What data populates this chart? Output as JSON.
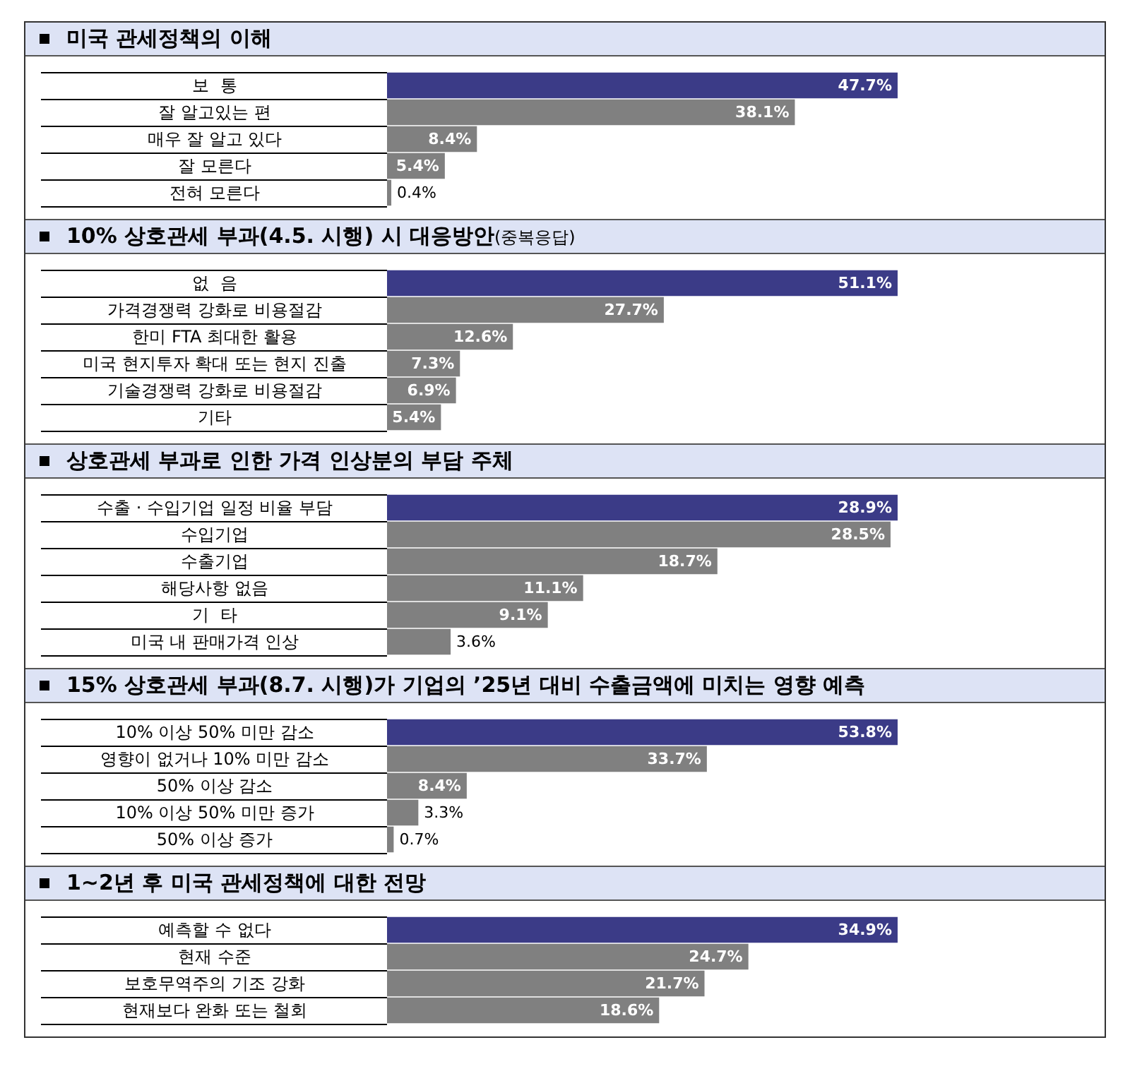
{
  "chart_data": [
    {
      "type": "bar",
      "orientation": "horizontal",
      "data_labels": true,
      "title": "미국 관세정책의 이해",
      "categories": [
        "보  통",
        "잘 알고있는 편",
        "매우 잘 알고 있다",
        "잘 모른다",
        "전혀 모른다"
      ],
      "values": [
        47.7,
        38.1,
        8.4,
        5.4,
        0.4
      ],
      "value_labels": [
        "47.7%",
        "38.1%",
        "8.4%",
        "5.4%",
        "0.4%"
      ],
      "colors": [
        "#3b3b87",
        "#808080",
        "#808080",
        "#808080",
        "#808080"
      ]
    },
    {
      "type": "bar",
      "orientation": "horizontal",
      "data_labels": true,
      "title": "10% 상호관세 부과(4.5. 시행) 시 대응방안",
      "subtitle": "(중복응답)",
      "categories": [
        "없  음",
        "가격경쟁력 강화로 비용절감",
        "한미 FTA 최대한 활용",
        "미국 현지투자 확대 또는 현지 진출",
        "기술경쟁력 강화로 비용절감",
        "기타"
      ],
      "values": [
        51.1,
        27.7,
        12.6,
        7.3,
        6.9,
        5.4
      ],
      "value_labels": [
        "51.1%",
        "27.7%",
        "12.6%",
        "7.3%",
        "6.9%",
        "5.4%"
      ],
      "colors": [
        "#3b3b87",
        "#808080",
        "#808080",
        "#808080",
        "#808080",
        "#808080"
      ]
    },
    {
      "type": "bar",
      "orientation": "horizontal",
      "data_labels": true,
      "title": "상호관세 부과로 인한 가격 인상분의 부담 주체",
      "categories": [
        "수출 · 수입기업 일정 비율 부담",
        "수입기업",
        "수출기업",
        "해당사항 없음",
        "기  타",
        "미국 내 판매가격 인상"
      ],
      "values": [
        28.9,
        28.5,
        18.7,
        11.1,
        9.1,
        3.6
      ],
      "value_labels": [
        "28.9%",
        "28.5%",
        "18.7%",
        "11.1%",
        "9.1%",
        "3.6%"
      ],
      "colors": [
        "#3b3b87",
        "#808080",
        "#808080",
        "#808080",
        "#808080",
        "#808080"
      ]
    },
    {
      "type": "bar",
      "orientation": "horizontal",
      "data_labels": true,
      "title": "15% 상호관세 부과(8.7. 시행)가 기업의 ’25년 대비 수출금액에 미치는 영향 예측",
      "categories": [
        "10% 이상 50% 미만 감소",
        "영향이 없거나 10% 미만 감소",
        "50% 이상 감소",
        "10% 이상 50% 미만 증가",
        "50% 이상 증가"
      ],
      "values": [
        53.8,
        33.7,
        8.4,
        3.3,
        0.7
      ],
      "value_labels": [
        "53.8%",
        "33.7%",
        "8.4%",
        "3.3%",
        "0.7%"
      ],
      "colors": [
        "#3b3b87",
        "#808080",
        "#808080",
        "#808080",
        "#808080"
      ]
    },
    {
      "type": "bar",
      "orientation": "horizontal",
      "data_labels": true,
      "title": "1~2년 후 미국 관세정책에 대한 전망",
      "categories": [
        "예측할 수 없다",
        "현재 수준",
        "보호무역주의 기조 강화",
        "현재보다 완화 또는 철회"
      ],
      "values": [
        34.9,
        24.7,
        21.7,
        18.6
      ],
      "value_labels": [
        "34.9%",
        "24.7%",
        "21.7%",
        "18.6%"
      ],
      "colors": [
        "#3b3b87",
        "#808080",
        "#808080",
        "#808080"
      ]
    }
  ]
}
